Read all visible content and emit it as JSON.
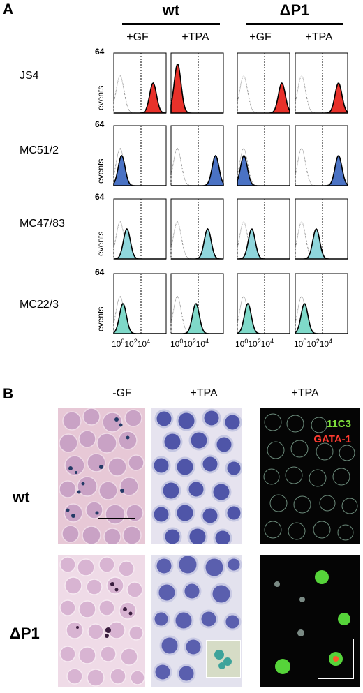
{
  "panel_a": {
    "letter": "A",
    "groups": [
      {
        "title": "wt",
        "conditions": [
          "+GF",
          "+TPA"
        ]
      },
      {
        "title": "ΔP1",
        "conditions": [
          "+GF",
          "+TPA"
        ]
      }
    ],
    "rows": [
      {
        "label": "JS4",
        "color": "#e8312a"
      },
      {
        "label": "MC51/2",
        "color": "#4a72c4"
      },
      {
        "label": "MC47/83",
        "color": "#8fd6dc"
      },
      {
        "label": "MC22/3",
        "color": "#7fd9c9"
      }
    ],
    "y_max": "64",
    "y_axis_label": "events",
    "x_tick_base": "10",
    "x_tick_exps": [
      "0",
      "2",
      "4"
    ]
  },
  "panel_b": {
    "letter": "B",
    "columns": [
      "-GF",
      "+TPA",
      "+TPA"
    ],
    "rows": [
      "wt",
      "ΔP1"
    ],
    "legend": [
      {
        "text": "11C3",
        "color": "#7ee03a"
      },
      {
        "text": "GATA-1",
        "color": "#ff3b30"
      }
    ]
  },
  "histogram_peaks": {
    "description_units": "log10 fluorescence decade position of filled peak (0-4)",
    "rows": [
      [
        3.0,
        0.5,
        3.4,
        3.3
      ],
      [
        0.6,
        3.4,
        0.5,
        3.3
      ],
      [
        1.0,
        2.8,
        1.1,
        1.6
      ],
      [
        0.7,
        1.9,
        0.8,
        0.7
      ]
    ]
  }
}
